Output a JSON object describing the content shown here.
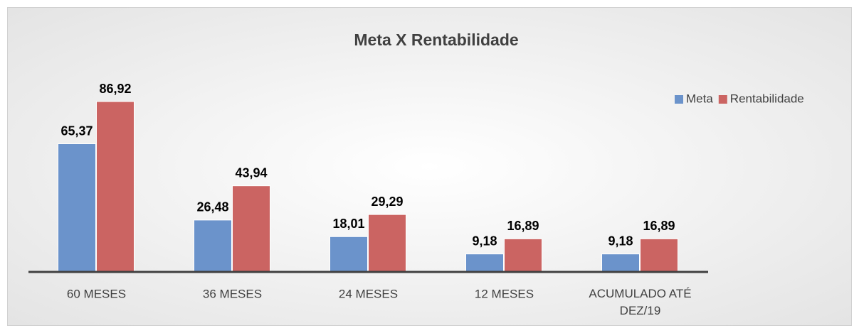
{
  "chart_data": {
    "type": "bar",
    "title": "Meta X Rentabilidade",
    "categories": [
      "60 MESES",
      "36 MESES",
      "24 MESES",
      "12 MESES",
      "ACUMULADO ATÉ DEZ/19"
    ],
    "series": [
      {
        "name": "Meta",
        "color": "#6b93cb",
        "values": [
          65.37,
          26.48,
          18.01,
          9.18,
          9.18
        ],
        "value_labels": [
          "65,37",
          "26,48",
          "18,01",
          "9,18",
          "9,18"
        ]
      },
      {
        "name": "Rentabilidade",
        "color": "#cb6462",
        "values": [
          86.92,
          43.94,
          29.29,
          16.89,
          16.89
        ],
        "value_labels": [
          "86,92",
          "43,94",
          "29,29",
          "16,89",
          "16,89"
        ]
      }
    ],
    "legend": "top-right"
  }
}
